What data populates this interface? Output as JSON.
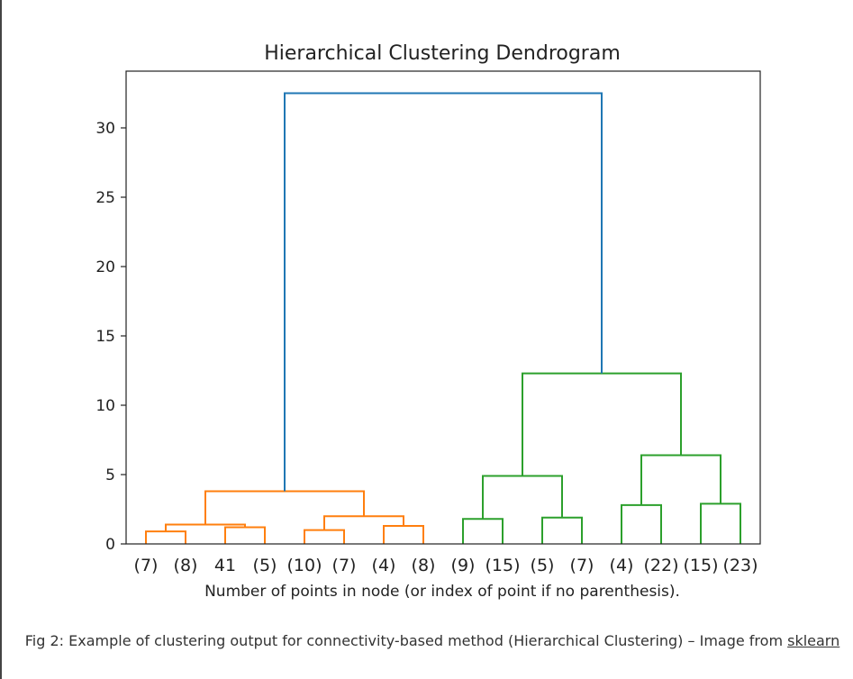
{
  "chart_data": {
    "type": "dendrogram",
    "title": "Hierarchical Clustering Dendrogram",
    "xlabel": "Number of points in node (or index of point if no parenthesis).",
    "ylabel": "",
    "ylim": [
      0,
      33
    ],
    "yticks": [
      0,
      5,
      10,
      15,
      20,
      25,
      30
    ],
    "leaf_labels": [
      "(7)",
      "(8)",
      "41",
      "(5)",
      "(10)",
      "(7)",
      "(4)",
      "(8)",
      "(9)",
      "(15)",
      "(5)",
      "(7)",
      "(4)",
      "(22)",
      "(15)",
      "(23)"
    ],
    "links": [
      {
        "left": "L0",
        "right": "L1",
        "height": 0.9,
        "color": "#ff7f0e"
      },
      {
        "left": "L2",
        "right": "L3",
        "height": 1.2,
        "color": "#ff7f0e"
      },
      {
        "left": "N0",
        "right": "N1",
        "height": 1.4,
        "color": "#ff7f0e"
      },
      {
        "left": "L4",
        "right": "L5",
        "height": 1.0,
        "color": "#ff7f0e"
      },
      {
        "left": "L6",
        "right": "L7",
        "height": 1.3,
        "color": "#ff7f0e"
      },
      {
        "left": "N3",
        "right": "N4",
        "height": 2.0,
        "color": "#ff7f0e"
      },
      {
        "left": "N2",
        "right": "N5",
        "height": 3.8,
        "color": "#ff7f0e"
      },
      {
        "left": "L8",
        "right": "L9",
        "height": 1.8,
        "color": "#2ca02c"
      },
      {
        "left": "L10",
        "right": "L11",
        "height": 1.9,
        "color": "#2ca02c"
      },
      {
        "left": "N7",
        "right": "N8",
        "height": 4.9,
        "color": "#2ca02c"
      },
      {
        "left": "L12",
        "right": "L13",
        "height": 2.8,
        "color": "#2ca02c"
      },
      {
        "left": "L14",
        "right": "L15",
        "height": 2.9,
        "color": "#2ca02c"
      },
      {
        "left": "N10",
        "right": "N11",
        "height": 6.4,
        "color": "#2ca02c"
      },
      {
        "left": "N9",
        "right": "N12",
        "height": 12.3,
        "color": "#2ca02c"
      },
      {
        "left": "N6",
        "right": "N13",
        "height": 32.5,
        "color": "#1f77b4"
      }
    ],
    "grid": false,
    "legend": "none"
  },
  "caption": {
    "text": "Fig 2: Example of clustering output for connectivity-based method (Hierarchical Clustering) – Image from ",
    "link_text": "sklearn"
  }
}
